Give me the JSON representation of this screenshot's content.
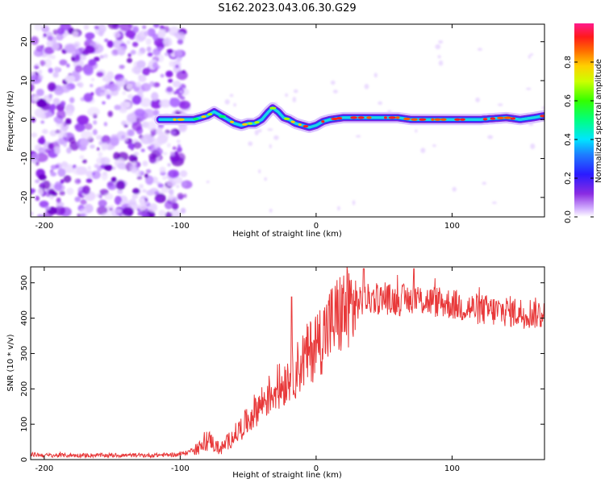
{
  "title": "S162.2023.043.06.30.G29",
  "colorbar": {
    "label": "Normalized spectral amplitude",
    "ticks": [
      "0.0",
      "0.2",
      "0.4",
      "0.6",
      "0.8"
    ]
  },
  "chart_data": [
    {
      "type": "heatmap",
      "xlabel": "Height of straight line (km)",
      "ylabel": "Frequency (Hz)",
      "xlim": [
        -210,
        168
      ],
      "ylim": [
        -25,
        24.5
      ],
      "xticks": [
        -200,
        -100,
        0,
        100
      ],
      "yticks": [
        -20,
        -10,
        0,
        10,
        20
      ],
      "ridge": {
        "x": [
          -115,
          -100,
          -90,
          -80,
          -75,
          -70,
          -65,
          -60,
          -55,
          -50,
          -45,
          -40,
          -35,
          -32,
          -28,
          -24,
          -20,
          -15,
          -10,
          -5,
          0,
          5,
          10,
          20,
          30,
          40,
          50,
          60,
          70,
          80,
          100,
          120,
          140,
          150,
          160,
          168
        ],
        "y": [
          0,
          0,
          0,
          1,
          2,
          1,
          0,
          -1,
          -1.5,
          -1,
          -1,
          0,
          2,
          3,
          2,
          0.5,
          0,
          -1,
          -1.5,
          -2,
          -1.5,
          -0.5,
          0,
          0.5,
          0.5,
          0.5,
          0.5,
          0.5,
          0,
          0,
          0,
          0,
          0.5,
          0,
          0.5,
          1
        ]
      },
      "noise_region_x": [
        -210,
        -100
      ]
    },
    {
      "type": "line",
      "xlabel": "Height of straight line (km)",
      "ylabel": "SNR (10 * v/v)",
      "xlim": [
        -210,
        168
      ],
      "ylim": [
        0,
        545
      ],
      "xticks": [
        -200,
        -100,
        0,
        100
      ],
      "yticks": [
        0,
        100,
        200,
        300,
        400,
        500
      ],
      "color": "#e8393a",
      "series": [
        {
          "x": [
            -210,
            -200,
            -180,
            -160,
            -140,
            -120,
            -100,
            -95,
            -90,
            -85,
            -80,
            -78,
            -75,
            -70,
            -65,
            -60,
            -55,
            -50,
            -45,
            -40,
            -35,
            -30,
            -25,
            -20,
            -15,
            -10,
            -5,
            0,
            5,
            10,
            15,
            20,
            25,
            30,
            35,
            40,
            50,
            60,
            70,
            80,
            90,
            100,
            110,
            120,
            130,
            140,
            150,
            160,
            168
          ],
          "y": [
            15,
            12,
            12,
            12,
            12,
            12,
            15,
            20,
            30,
            35,
            45,
            60,
            40,
            30,
            50,
            70,
            90,
            110,
            140,
            160,
            180,
            200,
            210,
            240,
            250,
            280,
            300,
            330,
            350,
            380,
            400,
            420,
            430,
            440,
            450,
            455,
            455,
            450,
            455,
            450,
            445,
            440,
            430,
            425,
            420,
            420,
            415,
            415,
            410
          ]
        }
      ],
      "spikes": [
        {
          "x": -18,
          "y": 460
        },
        {
          "x": 35,
          "y": 540
        },
        {
          "x": 72,
          "y": 540
        }
      ]
    }
  ]
}
